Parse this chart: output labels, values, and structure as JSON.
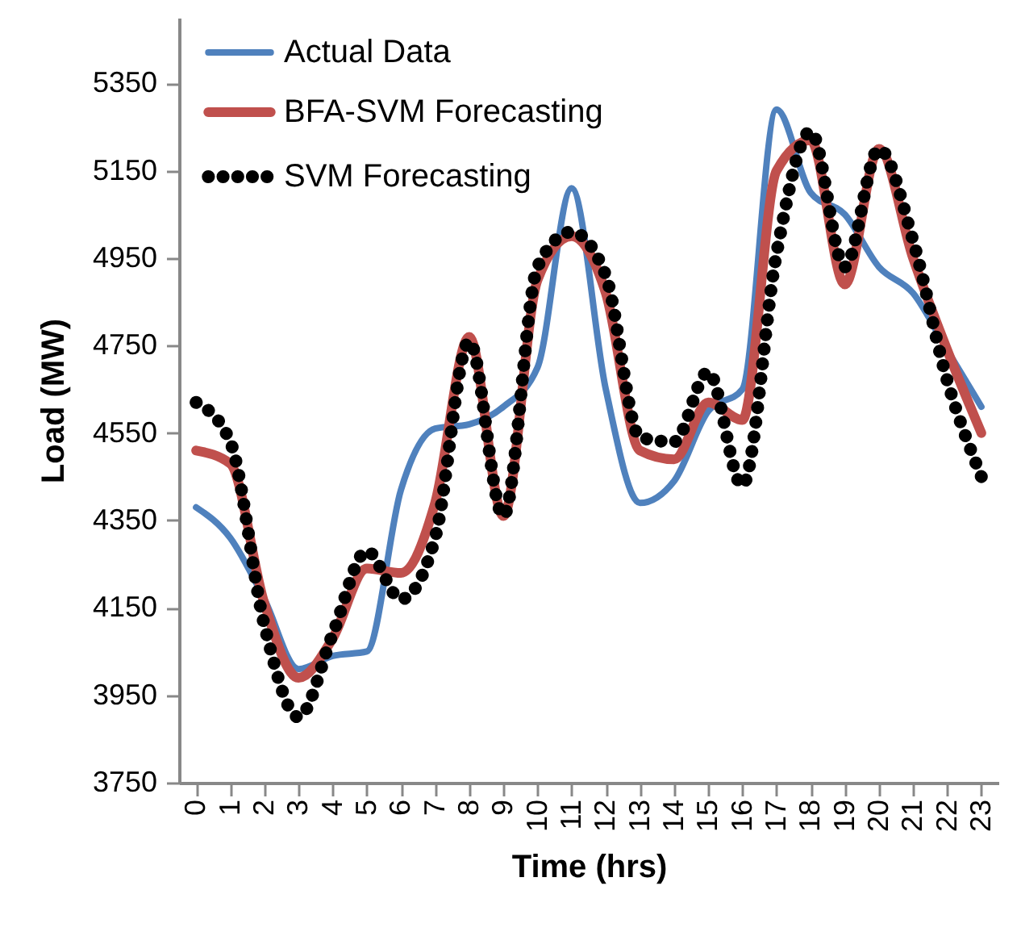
{
  "chart_data": {
    "type": "line",
    "xlabel": "Time (hrs)",
    "ylabel": "Load (MW)",
    "categories": [
      "0",
      "1",
      "2",
      "3",
      "4",
      "5",
      "6",
      "7",
      "8",
      "9",
      "10",
      "11",
      "12",
      "13",
      "14",
      "15",
      "16",
      "17",
      "18",
      "19",
      "20",
      "21",
      "22",
      "23"
    ],
    "ylim": [
      3750,
      5500
    ],
    "yticks": [
      3750,
      3950,
      4150,
      4350,
      4550,
      4750,
      4950,
      5150,
      5350
    ],
    "grid": false,
    "legend": "top left",
    "series": [
      {
        "name": "Actual Data",
        "color": "#4f81bd",
        "line_style": "solid",
        "values": [
          4380,
          4310,
          4170,
          4010,
          4040,
          4050,
          4420,
          4560,
          4570,
          4610,
          4700,
          5110,
          4650,
          4390,
          4440,
          4600,
          4650,
          5290,
          5100,
          5050,
          4930,
          4870,
          4740,
          4610
        ]
      },
      {
        "name": "BFA-SVM Forecasting",
        "color": "#c0504d",
        "line_style": "solid",
        "values": [
          4510,
          4480,
          4160,
          3990,
          4080,
          4240,
          4230,
          4390,
          4770,
          4360,
          4900,
          5000,
          4870,
          4510,
          4490,
          4620,
          4580,
          5150,
          5220,
          4890,
          5200,
          4950,
          4740,
          4550
        ]
      },
      {
        "name": "SVM Forecasting",
        "color": "#000000",
        "line_style": "dotted",
        "values": [
          4620,
          4530,
          4110,
          3900,
          4090,
          4280,
          4170,
          4310,
          4760,
          4360,
          4930,
          5010,
          4910,
          4540,
          4530,
          4690,
          4430,
          4960,
          5240,
          4930,
          5200,
          4990,
          4670,
          4450
        ]
      }
    ]
  }
}
